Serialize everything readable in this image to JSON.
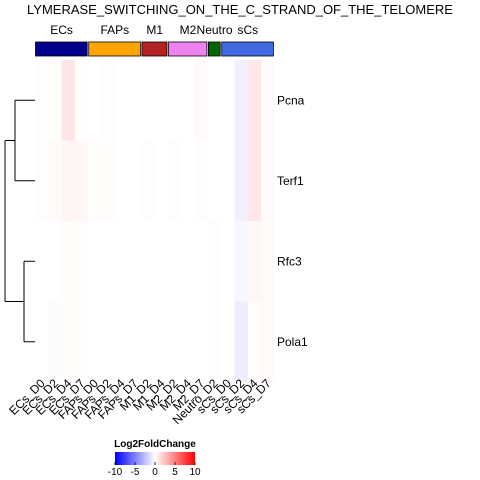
{
  "chart_data": {
    "type": "heatmap",
    "title": "LYMERASE_SWITCHING_ON_THE_C_STRAND_OF_THE_TELOMERE",
    "groups": [
      {
        "name": "ECs",
        "color": "#00008B",
        "columns": 4
      },
      {
        "name": "FAPs",
        "color": "#FFA500",
        "columns": 4
      },
      {
        "name": "M1",
        "color": "#B22222",
        "columns": 2
      },
      {
        "name": "M2",
        "color": "#EE82EE",
        "columns": 3
      },
      {
        "name": "Neutro",
        "color": "#006400",
        "columns": 1
      },
      {
        "name": "sCs",
        "color": "#4169E1",
        "columns": 4
      }
    ],
    "columns": [
      "ECs_D0",
      "ECs_D2",
      "ECs_D4",
      "ECs_D7",
      "FAPs_D0",
      "FAPs_D2",
      "FAPs_D4",
      "FAPs_D7",
      "M1_D2",
      "M1_D4",
      "M2_D2",
      "M2_D4",
      "M2_D7",
      "Neutro_D2",
      "sCs_D0",
      "sCs_D2",
      "sCs_D4",
      "sCs_D7"
    ],
    "rows": [
      "Pcna",
      "Terf1",
      "Rfc3",
      "Pola1"
    ],
    "values": [
      [
        0.1,
        0.1,
        1.0,
        0.1,
        0.0,
        0.1,
        0.0,
        0.0,
        0.0,
        0.0,
        0.0,
        0.0,
        0.2,
        0.0,
        0.0,
        -0.6,
        0.9,
        0.2
      ],
      [
        0.1,
        0.2,
        0.4,
        0.3,
        0.1,
        0.1,
        0.0,
        0.0,
        0.1,
        0.0,
        0.1,
        0.0,
        0.1,
        0.0,
        0.0,
        -0.6,
        0.9,
        0.2
      ],
      [
        0.0,
        0.0,
        0.1,
        0.1,
        0.0,
        0.0,
        0.0,
        0.0,
        0.0,
        0.0,
        0.0,
        0.0,
        0.0,
        0.1,
        0.0,
        -0.3,
        0.3,
        0.2
      ],
      [
        0.0,
        -0.1,
        0.1,
        0.1,
        0.0,
        0.0,
        0.0,
        0.0,
        0.0,
        0.0,
        0.0,
        0.0,
        0.0,
        0.1,
        0.0,
        -0.7,
        0.1,
        0.2
      ]
    ],
    "legend": {
      "title": "Log2FoldChange",
      "ticks": [
        -10,
        -5,
        0,
        5,
        10
      ],
      "range": [
        -10,
        10
      ],
      "colors": [
        "#0000FF",
        "#FFFFFF",
        "#FF0000"
      ]
    },
    "row_dendrogram": true
  }
}
